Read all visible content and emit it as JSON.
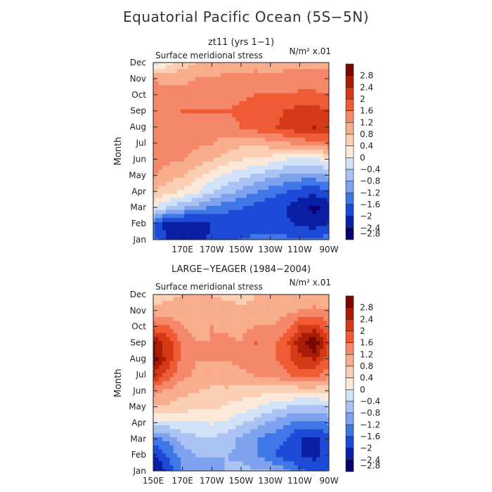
{
  "title": "Equatorial Pacific Ocean (5S−5N)",
  "colors": {
    "palette": [
      "#08006e",
      "#0b1fa5",
      "#1d4ad6",
      "#3f78e6",
      "#7ea2ee",
      "#aac3f3",
      "#d2e2f8",
      "#fde9d9",
      "#fbcfb3",
      "#f8ad8c",
      "#f5886a",
      "#ee5b34",
      "#d53a16",
      "#a91d07",
      "#7a0800"
    ]
  },
  "chart_data": [
    {
      "type": "heatmap",
      "subtitle": "zt11 (yrs 1−1)",
      "panel_label": "Surface meridional stress",
      "units": "N/m² x.01",
      "ylabel": "Month",
      "xlabel": "",
      "x_ticks": [
        "170E",
        "170W",
        "150W",
        "130W",
        "110W",
        "90W"
      ],
      "y_ticks": [
        "Jan",
        "Feb",
        "Mar",
        "Apr",
        "May",
        "Jun",
        "Jul",
        "Aug",
        "Sep",
        "Oct",
        "Nov",
        "Dec"
      ],
      "colorbar_levels": [
        "2.8",
        "2.4",
        "2",
        "1.6",
        "1.2",
        "0.8",
        "0.4",
        "0",
        "−0.4",
        "−0.8",
        "−1.2",
        "−1.6",
        "−2",
        "−2.4",
        "−2.8"
      ],
      "longitudes": [
        "150E",
        "160E",
        "170E",
        "180",
        "170W",
        "160W",
        "150W",
        "140W",
        "130W",
        "120W",
        "110W",
        "100W",
        "90W"
      ],
      "months": [
        "Jan",
        "Feb",
        "Mar",
        "Apr",
        "May",
        "Jun",
        "Jul",
        "Aug",
        "Sep",
        "Oct",
        "Nov",
        "Dec"
      ],
      "values": [
        [
          -1.8,
          -2.5,
          -2.6,
          -2.6,
          -2.3,
          -2.2,
          -2.0,
          -1.9,
          -1.9,
          -1.9,
          -1.9,
          -1.9,
          -1.8
        ],
        [
          -2.0,
          -2.6,
          -2.8,
          -2.7,
          -2.4,
          -2.3,
          -2.2,
          -2.2,
          -2.2,
          -2.3,
          -2.5,
          -2.6,
          -2.4
        ],
        [
          -0.4,
          -0.9,
          -1.2,
          -1.4,
          -1.7,
          -1.9,
          -2.0,
          -2.2,
          -2.3,
          -2.4,
          -2.7,
          -2.9,
          -2.7
        ],
        [
          0.4,
          0.1,
          -0.1,
          -0.4,
          -0.8,
          -1.1,
          -1.3,
          -1.6,
          -1.8,
          -2.0,
          -2.2,
          -2.3,
          -2.1
        ],
        [
          0.8,
          0.6,
          0.4,
          0.1,
          -0.2,
          -0.5,
          -0.7,
          -0.9,
          -1.1,
          -1.3,
          -1.4,
          -1.4,
          -1.2
        ],
        [
          1.0,
          0.9,
          0.8,
          0.6,
          0.4,
          0.2,
          0.0,
          -0.1,
          -0.2,
          -0.4,
          -0.5,
          -0.5,
          -0.3
        ],
        [
          1.0,
          0.9,
          1.0,
          0.9,
          0.8,
          0.6,
          0.5,
          0.5,
          0.6,
          0.7,
          0.9,
          1.1,
          1.2
        ],
        [
          1.0,
          0.9,
          1.0,
          1.0,
          1.1,
          1.0,
          1.2,
          1.4,
          1.5,
          1.7,
          1.9,
          2.0,
          1.8
        ],
        [
          1.0,
          1.0,
          1.2,
          1.2,
          1.2,
          1.2,
          1.3,
          1.4,
          1.5,
          1.6,
          1.8,
          1.8,
          1.6
        ],
        [
          0.9,
          0.9,
          1.0,
          1.0,
          1.1,
          1.1,
          1.1,
          1.2,
          1.2,
          1.2,
          1.3,
          1.3,
          1.2
        ],
        [
          0.8,
          0.7,
          0.7,
          0.8,
          0.8,
          0.9,
          0.9,
          1.0,
          0.9,
          0.9,
          0.9,
          0.9,
          0.9
        ],
        [
          -0.6,
          -0.2,
          0.2,
          0.4,
          0.5,
          0.6,
          0.6,
          0.6,
          0.6,
          0.7,
          0.7,
          0.7,
          0.7
        ]
      ]
    },
    {
      "type": "heatmap",
      "subtitle": "LARGE−YEAGER (1984−2004)",
      "panel_label": "Surface meridional stress",
      "units": "N/m² x.01",
      "ylabel": "Month",
      "xlabel": "",
      "x_ticks": [
        "150E",
        "170E",
        "170W",
        "150W",
        "130W",
        "110W",
        "90W"
      ],
      "y_ticks": [
        "Jan",
        "Feb",
        "Mar",
        "Apr",
        "May",
        "Jun",
        "Jul",
        "Aug",
        "Sep",
        "Oct",
        "Nov",
        "Dec"
      ],
      "colorbar_levels": [
        "2.8",
        "2.4",
        "2",
        "1.6",
        "1.2",
        "0.8",
        "0.4",
        "0",
        "−0.4",
        "−0.8",
        "−1.2",
        "−1.6",
        "−2",
        "−2.4",
        "−2.8"
      ],
      "longitudes": [
        "150E",
        "160E",
        "170E",
        "180",
        "170W",
        "160W",
        "150W",
        "140W",
        "130W",
        "120W",
        "110W",
        "100W",
        "90W"
      ],
      "months": [
        "Jan",
        "Feb",
        "Mar",
        "Apr",
        "May",
        "Jun",
        "Jul",
        "Aug",
        "Sep",
        "Oct",
        "Nov",
        "Dec"
      ],
      "values": [
        [
          -2.9,
          -2.3,
          -1.6,
          -1.4,
          -1.3,
          -1.2,
          -1.1,
          -1.1,
          -1.2,
          -1.5,
          -1.9,
          -2.2,
          -2.0
        ],
        [
          -2.5,
          -2.0,
          -1.4,
          -1.2,
          -1.2,
          -1.2,
          -1.3,
          -1.6,
          -1.9,
          -2.2,
          -2.4,
          -2.5,
          -2.3
        ],
        [
          -1.8,
          -1.5,
          -1.1,
          -0.9,
          -0.9,
          -1.0,
          -1.3,
          -1.6,
          -1.8,
          -2.0,
          -2.4,
          -2.5,
          -2.2
        ],
        [
          -0.6,
          -0.6,
          -0.5,
          -0.5,
          -0.4,
          -0.5,
          -0.8,
          -1.0,
          -1.3,
          -1.5,
          -1.8,
          -1.8,
          -1.6
        ],
        [
          0.3,
          0.3,
          0.2,
          0.1,
          0.1,
          -0.1,
          -0.2,
          -0.4,
          -0.6,
          -0.8,
          -1.0,
          -1.0,
          -0.8
        ],
        [
          1.0,
          0.7,
          0.5,
          0.4,
          0.3,
          0.3,
          0.2,
          0.2,
          0.1,
          0.1,
          0.1,
          0.1,
          0.1
        ],
        [
          2.0,
          1.4,
          0.9,
          0.7,
          0.6,
          0.7,
          0.7,
          0.8,
          0.9,
          1.1,
          1.3,
          1.3,
          1.0
        ],
        [
          2.6,
          1.8,
          1.0,
          0.8,
          0.8,
          0.8,
          0.9,
          1.0,
          1.1,
          1.4,
          1.9,
          2.0,
          1.4
        ],
        [
          2.4,
          1.8,
          1.0,
          0.8,
          0.8,
          0.9,
          0.8,
          1.2,
          1.0,
          1.4,
          2.2,
          2.8,
          1.6
        ],
        [
          1.4,
          1.2,
          0.8,
          0.7,
          0.8,
          0.7,
          0.7,
          0.8,
          0.8,
          1.0,
          1.6,
          1.8,
          1.3
        ],
        [
          0.6,
          0.6,
          0.5,
          0.5,
          0.6,
          0.6,
          0.6,
          0.6,
          0.6,
          0.7,
          0.8,
          0.9,
          0.8
        ],
        [
          -0.1,
          0.3,
          0.4,
          0.4,
          0.4,
          0.3,
          0.1,
          0.4,
          0.4,
          0.5,
          0.5,
          0.5,
          0.5
        ]
      ]
    }
  ]
}
